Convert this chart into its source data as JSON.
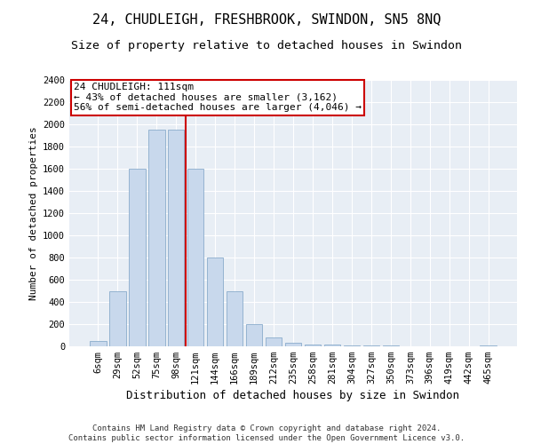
{
  "title1": "24, CHUDLEIGH, FRESHBROOK, SWINDON, SN5 8NQ",
  "title2": "Size of property relative to detached houses in Swindon",
  "xlabel": "Distribution of detached houses by size in Swindon",
  "ylabel": "Number of detached properties",
  "categories": [
    "6sqm",
    "29sqm",
    "52sqm",
    "75sqm",
    "98sqm",
    "121sqm",
    "144sqm",
    "166sqm",
    "189sqm",
    "212sqm",
    "235sqm",
    "258sqm",
    "281sqm",
    "304sqm",
    "327sqm",
    "350sqm",
    "373sqm",
    "396sqm",
    "419sqm",
    "442sqm",
    "465sqm"
  ],
  "values": [
    50,
    500,
    1600,
    1950,
    1950,
    1600,
    800,
    500,
    200,
    80,
    30,
    20,
    15,
    10,
    5,
    5,
    3,
    2,
    2,
    1,
    5
  ],
  "bar_color": "#c8d8ec",
  "bar_edge_color": "#8aaccc",
  "vline_x_index": 4.5,
  "vline_color": "#cc0000",
  "annotation_text": "24 CHUDLEIGH: 111sqm\n← 43% of detached houses are smaller (3,162)\n56% of semi-detached houses are larger (4,046) →",
  "annotation_box_color": "#ffffff",
  "annotation_box_edge": "#cc0000",
  "ylim": [
    0,
    2400
  ],
  "yticks": [
    0,
    200,
    400,
    600,
    800,
    1000,
    1200,
    1400,
    1600,
    1800,
    2000,
    2200,
    2400
  ],
  "bg_color": "#e8eef5",
  "grid_color": "#ffffff",
  "footer": "Contains HM Land Registry data © Crown copyright and database right 2024.\nContains public sector information licensed under the Open Government Licence v3.0.",
  "title1_fontsize": 11,
  "title2_fontsize": 9.5,
  "xlabel_fontsize": 9,
  "ylabel_fontsize": 8,
  "tick_fontsize": 7.5,
  "annot_fontsize": 8,
  "footer_fontsize": 6.5
}
